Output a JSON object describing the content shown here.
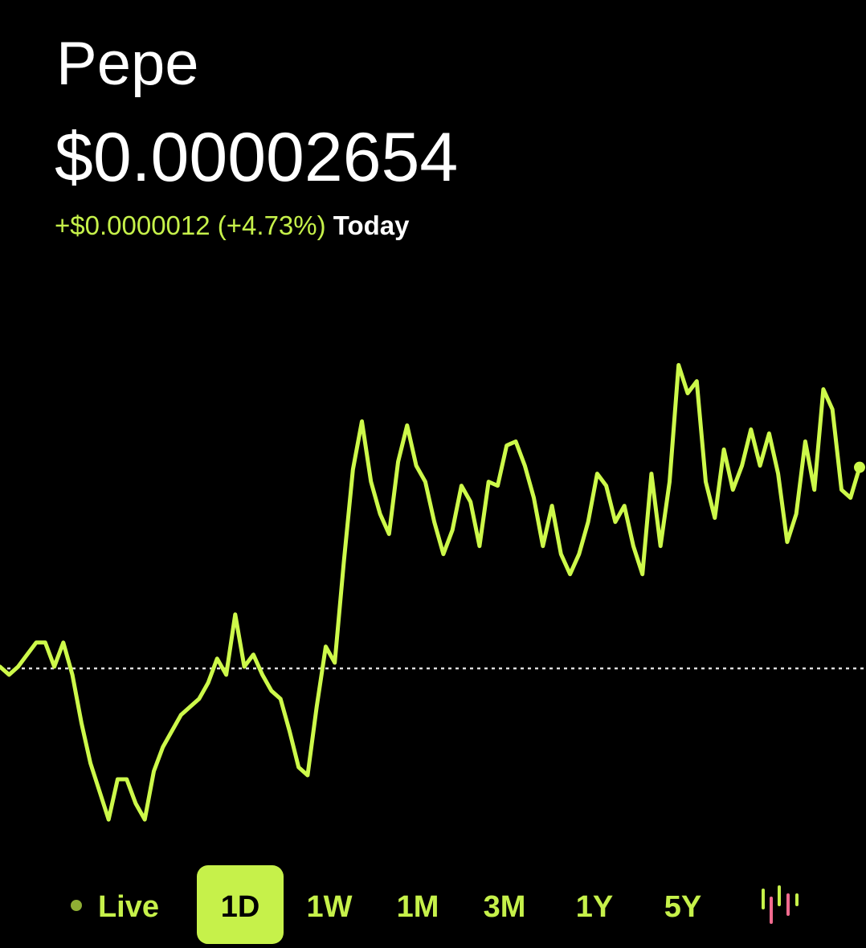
{
  "header": {
    "title": "Pepe",
    "price": "$0.00002654",
    "change": "+$0.0000012 (+4.73%)",
    "period": "Today"
  },
  "chart_data": {
    "type": "line",
    "color": "#cdf94a",
    "reference": 2.534e-05,
    "ylim": [
      2.44e-05,
      2.72e-05
    ],
    "values": [
      2.535e-05,
      2.5302e-05,
      2.535e-05,
      2.5422e-05,
      2.5494e-05,
      2.5494e-05,
      2.535e-05,
      2.5494e-05,
      2.5302e-05,
      2.5014e-05,
      2.4774e-05,
      2.4606e-05,
      2.4438e-05,
      2.4678e-05,
      2.4678e-05,
      2.4534e-05,
      2.4438e-05,
      2.4726e-05,
      2.487e-05,
      2.4966e-05,
      2.5062e-05,
      2.511e-05,
      2.5158e-05,
      2.5254e-05,
      2.5398e-05,
      2.5302e-05,
      2.5662e-05,
      2.535e-05,
      2.5422e-05,
      2.5302e-05,
      2.5206e-05,
      2.5158e-05,
      2.4966e-05,
      2.475e-05,
      2.4702e-05,
      2.511e-05,
      2.547e-05,
      2.5374e-05,
      2.5974e-05,
      2.6526e-05,
      2.6814e-05,
      2.6454e-05,
      2.6262e-05,
      2.6142e-05,
      2.6574e-05,
      2.679e-05,
      2.655e-05,
      2.6454e-05,
      2.6214e-05,
      2.6022e-05,
      2.6166e-05,
      2.643e-05,
      2.6334e-05,
      2.607e-05,
      2.6454e-05,
      2.643e-05,
      2.667e-05,
      2.6694e-05,
      2.655e-05,
      2.6358e-05,
      2.607e-05,
      2.631e-05,
      2.6022e-05,
      2.5902e-05,
      2.6022e-05,
      2.6214e-05,
      2.6502e-05,
      2.643e-05,
      2.6214e-05,
      2.631e-05,
      2.607e-05,
      2.5902e-05,
      2.6502e-05,
      2.607e-05,
      2.6454e-05,
      2.715e-05,
      2.6982e-05,
      2.7054e-05,
      2.6454e-05,
      2.6238e-05,
      2.6646e-05,
      2.6406e-05,
      2.655e-05,
      2.6766e-05,
      2.655e-05,
      2.6742e-05,
      2.6502e-05,
      2.6094e-05,
      2.6262e-05,
      2.6694e-05,
      2.6406e-05,
      2.7006e-05,
      2.6886e-05,
      2.6406e-05,
      2.6358e-05,
      2.654e-05
    ]
  },
  "tabs": {
    "items": [
      "Live",
      "1D",
      "1W",
      "1M",
      "3M",
      "1Y",
      "5Y"
    ],
    "selected": 1
  }
}
